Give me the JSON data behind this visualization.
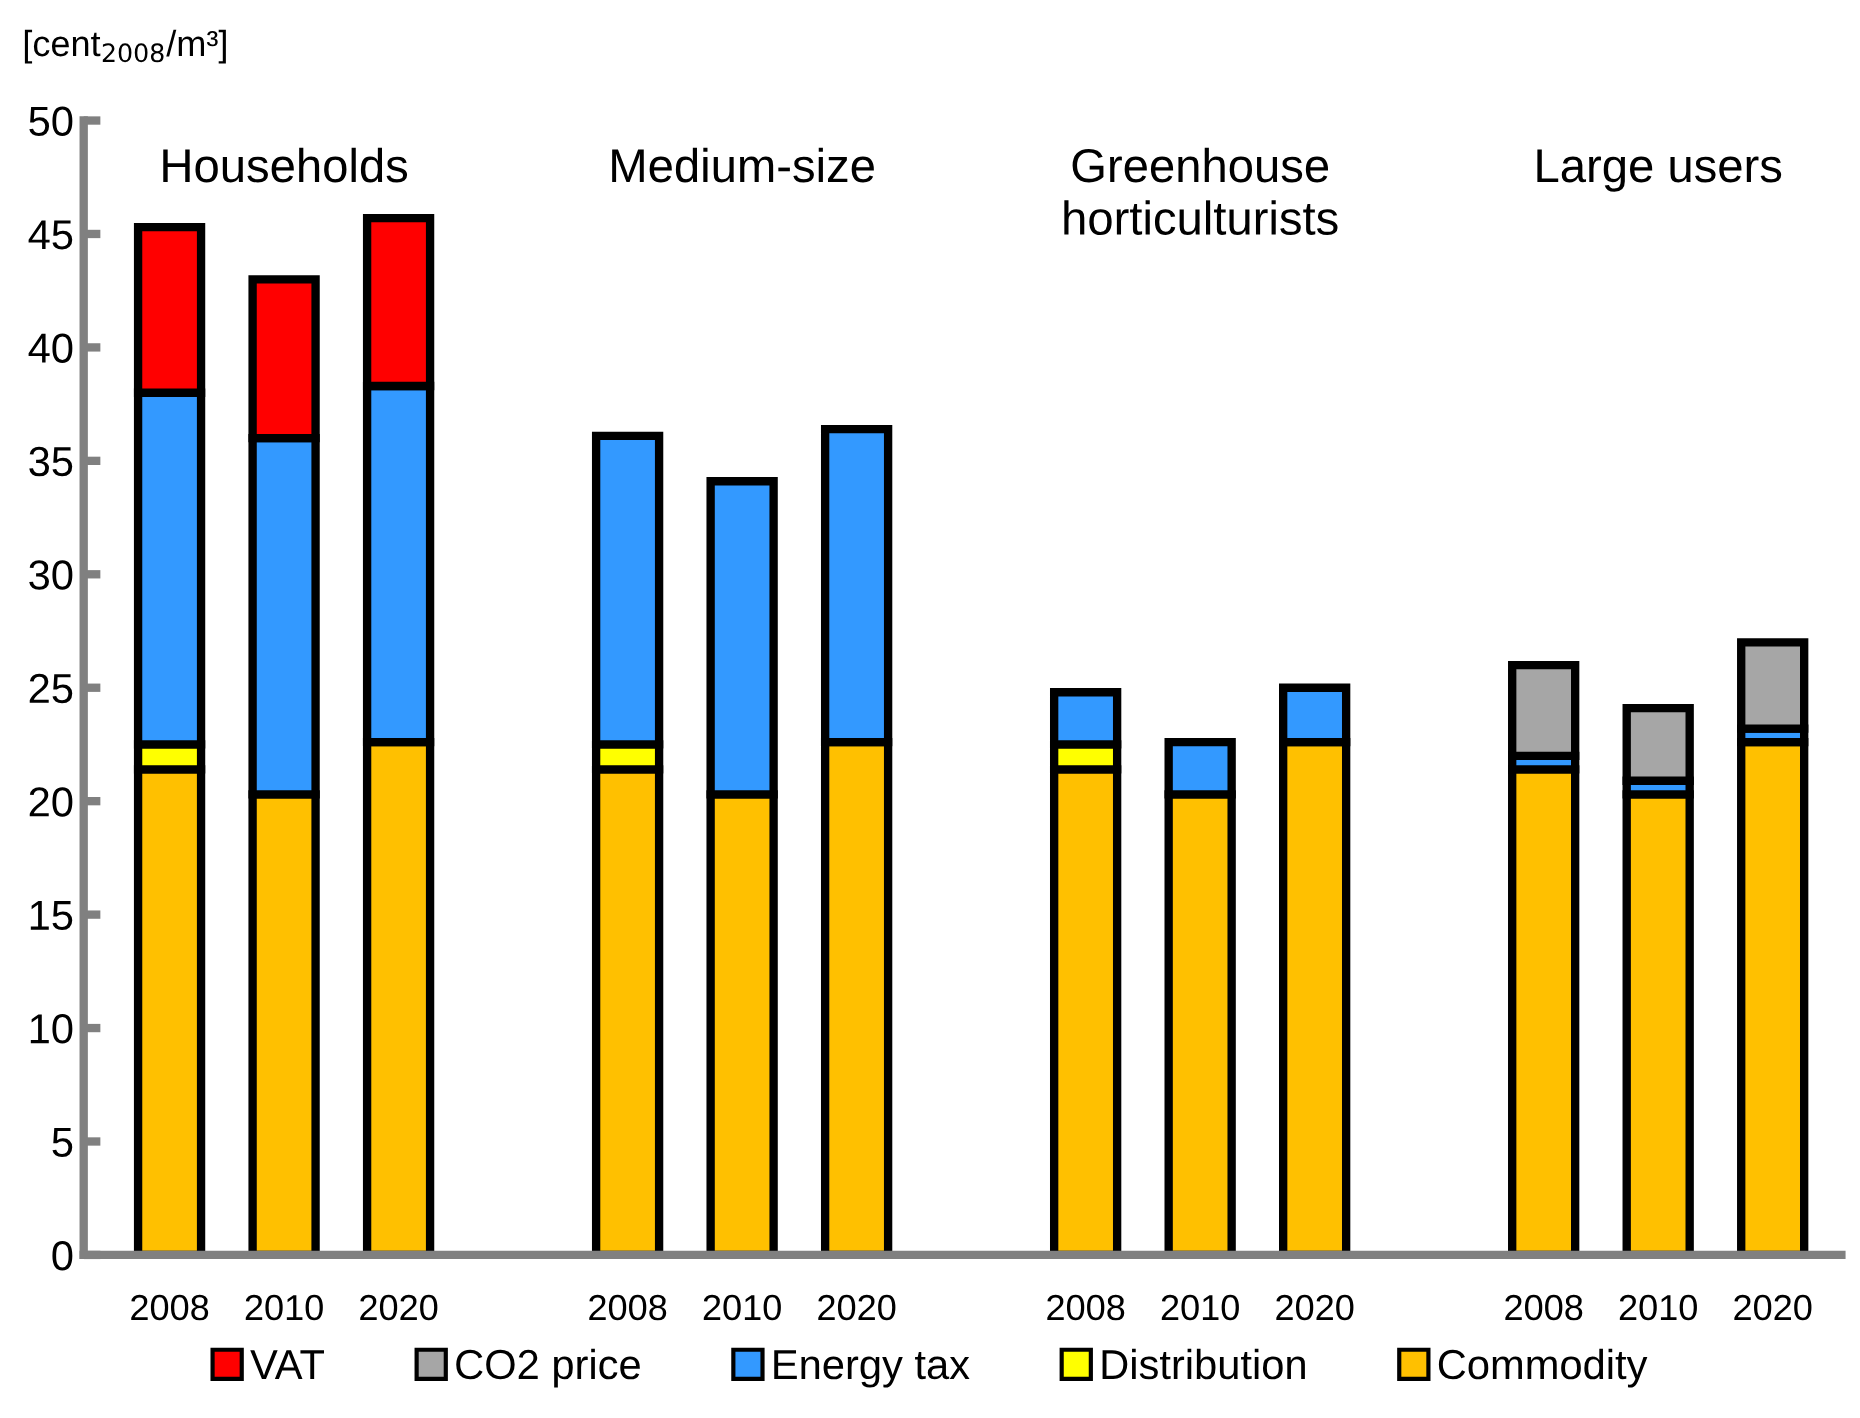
{
  "chart_data": {
    "type": "bar",
    "stacked": true,
    "ylabel": "[cent$_{2008}$/m³]",
    "ylim": [
      0,
      50
    ],
    "yticks": [
      0,
      5,
      10,
      15,
      20,
      25,
      30,
      35,
      40,
      45,
      50
    ],
    "grid": false,
    "legend": "bottom",
    "categories": [
      "2008",
      "2010",
      "2020",
      null,
      "2008",
      "2010",
      "2020",
      null,
      "2008",
      "2010",
      "2020",
      null,
      "2008",
      "2010",
      "2020"
    ],
    "annotations": [
      "Households",
      "Medium-size",
      "Greenhouse\nhorticulturists",
      "Large users"
    ],
    "series": [
      {
        "name": "Commodity",
        "color": "#ffc000",
        "values": [
          21.4,
          20.3,
          22.6,
          null,
          21.4,
          20.3,
          22.6,
          null,
          21.4,
          20.3,
          22.6,
          null,
          21.4,
          20.3,
          22.6
        ]
      },
      {
        "name": "Distribution",
        "color": "#ffff00",
        "values": [
          1.1,
          0,
          0,
          null,
          1.1,
          0,
          0,
          null,
          1.1,
          0,
          0,
          null,
          0,
          0,
          0
        ]
      },
      {
        "name": "Energy tax",
        "color": "#3399ff",
        "values": [
          15.5,
          15.7,
          15.7,
          null,
          13.6,
          13.8,
          13.8,
          null,
          2.3,
          2.3,
          2.4,
          null,
          0.6,
          0.6,
          0.6
        ]
      },
      {
        "name": "CO2 price",
        "color": "#a6a6a6",
        "values": [
          0,
          0,
          0,
          null,
          0,
          0,
          0,
          null,
          0,
          0,
          0,
          null,
          4.0,
          3.2,
          3.8
        ]
      },
      {
        "name": "VAT",
        "color": "#ff0000",
        "values": [
          7.3,
          7.0,
          7.4,
          null,
          0,
          0,
          0,
          null,
          0,
          0,
          0,
          null,
          0,
          0,
          0
        ]
      }
    ]
  }
}
